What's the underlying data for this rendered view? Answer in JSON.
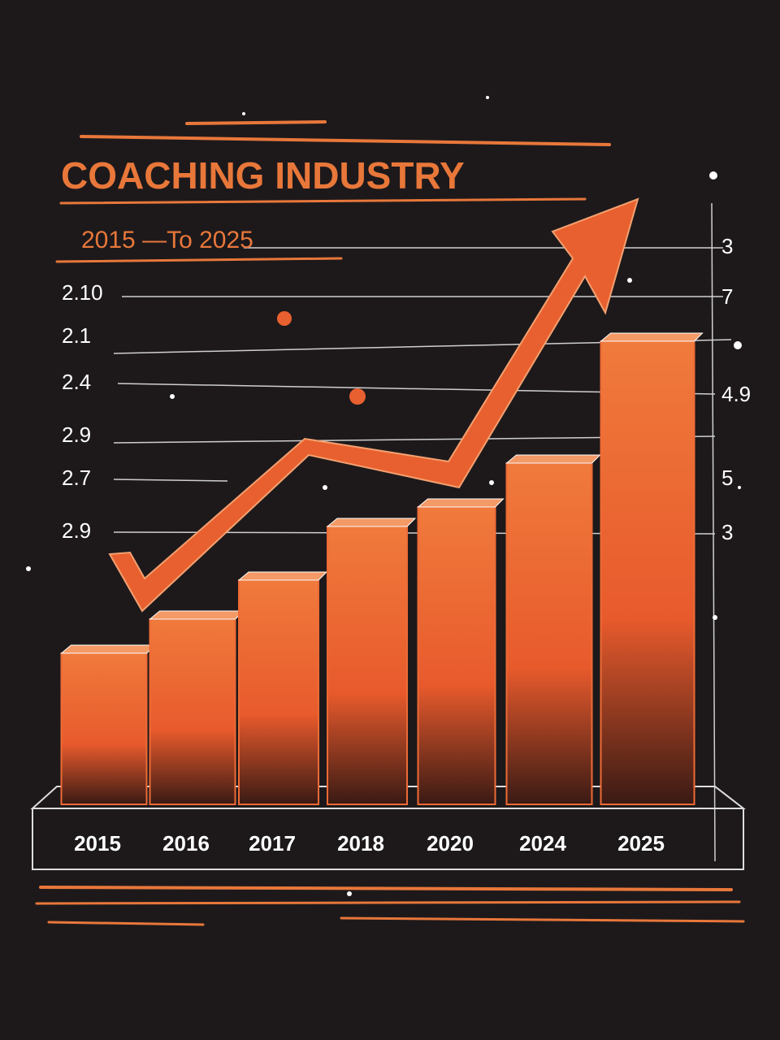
{
  "chart_data": {
    "type": "bar",
    "title": "COACHING INDUSTRY",
    "subtitle": "2015 —To 2025",
    "categories": [
      "2015",
      "2016",
      "2017",
      "2018",
      "2020",
      "2024",
      "2025"
    ],
    "values": [
      31,
      38,
      46,
      57,
      61,
      70,
      95
    ],
    "color": "#ee6a35",
    "ylim": [
      0,
      100
    ],
    "left_labels": [
      "2.10",
      "2.1",
      "2.4",
      "2.9",
      "2.7",
      "2.9"
    ],
    "right_labels": [
      "3",
      "7",
      "4.9",
      "5",
      "3"
    ]
  }
}
